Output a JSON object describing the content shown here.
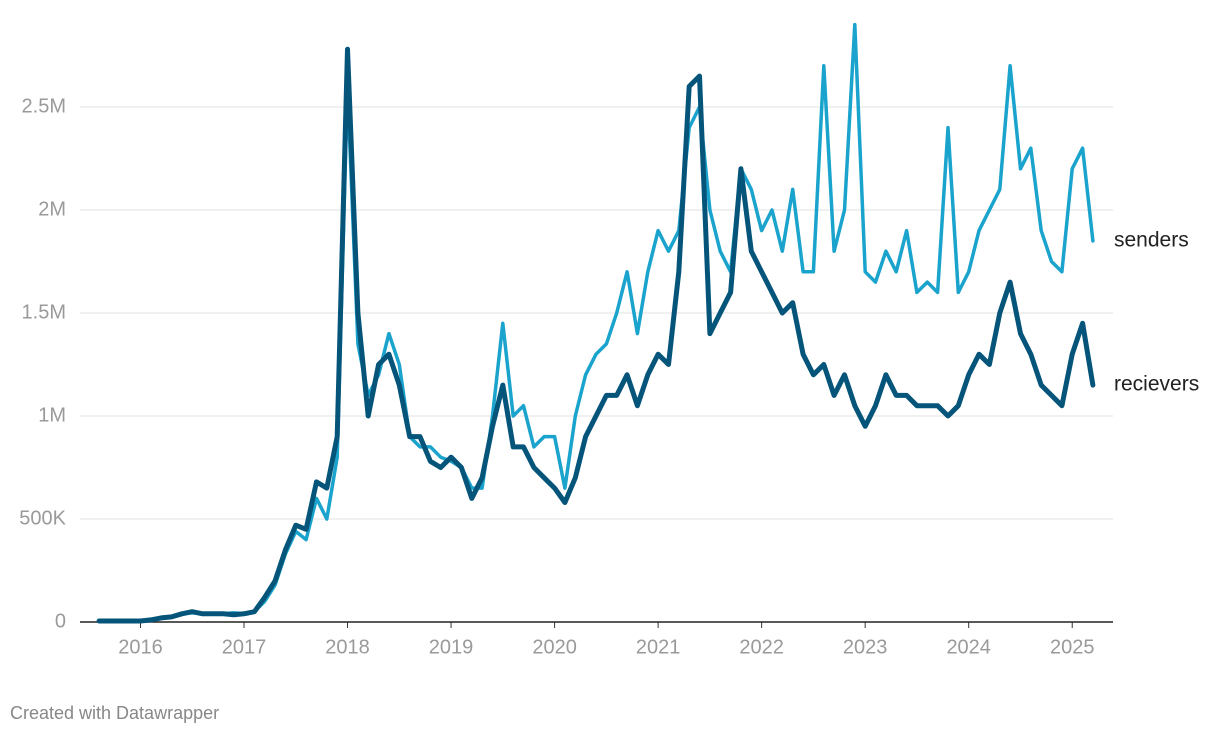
{
  "chart_data": {
    "type": "line",
    "x": [
      2015.6,
      2015.7,
      2015.8,
      2015.9,
      2016.0,
      2016.1,
      2016.2,
      2016.3,
      2016.4,
      2016.5,
      2016.6,
      2016.7,
      2016.8,
      2016.9,
      2017.0,
      2017.1,
      2017.2,
      2017.3,
      2017.4,
      2017.5,
      2017.6,
      2017.7,
      2017.8,
      2017.9,
      2018.0,
      2018.1,
      2018.2,
      2018.3,
      2018.4,
      2018.5,
      2018.6,
      2018.7,
      2018.8,
      2018.9,
      2019.0,
      2019.1,
      2019.2,
      2019.3,
      2019.4,
      2019.5,
      2019.6,
      2019.7,
      2019.8,
      2019.9,
      2020.0,
      2020.1,
      2020.2,
      2020.3,
      2020.4,
      2020.5,
      2020.6,
      2020.7,
      2020.8,
      2020.9,
      2021.0,
      2021.1,
      2021.2,
      2021.3,
      2021.4,
      2021.5,
      2021.6,
      2021.7,
      2021.8,
      2021.9,
      2022.0,
      2022.1,
      2022.2,
      2022.3,
      2022.4,
      2022.5,
      2022.6,
      2022.7,
      2022.8,
      2022.9,
      2023.0,
      2023.1,
      2023.2,
      2023.3,
      2023.4,
      2023.5,
      2023.6,
      2023.7,
      2023.8,
      2023.9,
      2024.0,
      2024.1,
      2024.2,
      2024.3,
      2024.4,
      2024.5,
      2024.6,
      2024.7,
      2024.8,
      2024.9,
      2025.0,
      2025.1,
      2025.2
    ],
    "series": [
      {
        "name": "senders",
        "color": "#1aa3cc",
        "values": [
          5000,
          5000,
          5000,
          5000,
          5000,
          10000,
          20000,
          25000,
          40000,
          45000,
          40000,
          40000,
          40000,
          45000,
          40000,
          50000,
          100000,
          180000,
          330000,
          440000,
          400000,
          600000,
          500000,
          800000,
          2600000,
          1350000,
          1100000,
          1200000,
          1400000,
          1250000,
          900000,
          850000,
          850000,
          800000,
          780000,
          750000,
          650000,
          650000,
          1000000,
          1450000,
          1000000,
          1050000,
          850000,
          900000,
          900000,
          650000,
          1000000,
          1200000,
          1300000,
          1350000,
          1500000,
          1700000,
          1400000,
          1700000,
          1900000,
          1800000,
          1900000,
          2400000,
          2500000,
          2000000,
          1800000,
          1700000,
          2200000,
          2100000,
          1900000,
          2000000,
          1800000,
          2100000,
          1700000,
          1700000,
          2700000,
          1800000,
          2000000,
          2900000,
          1700000,
          1650000,
          1800000,
          1700000,
          1900000,
          1600000,
          1650000,
          1600000,
          2400000,
          1600000,
          1700000,
          1900000,
          2000000,
          2100000,
          2700000,
          2200000,
          2300000,
          1900000,
          1750000,
          1700000,
          2200000,
          2300000,
          1850000
        ]
      },
      {
        "name": "recievers",
        "color": "#05547a",
        "values": [
          5000,
          5000,
          5000,
          5000,
          5000,
          10000,
          20000,
          25000,
          40000,
          50000,
          40000,
          40000,
          40000,
          35000,
          40000,
          50000,
          120000,
          200000,
          350000,
          470000,
          450000,
          680000,
          650000,
          900000,
          2780000,
          1500000,
          1000000,
          1250000,
          1300000,
          1150000,
          900000,
          900000,
          780000,
          750000,
          800000,
          750000,
          600000,
          700000,
          950000,
          1150000,
          850000,
          850000,
          750000,
          700000,
          650000,
          580000,
          700000,
          900000,
          1000000,
          1100000,
          1100000,
          1200000,
          1050000,
          1200000,
          1300000,
          1250000,
          1700000,
          2600000,
          2650000,
          1400000,
          1500000,
          1600000,
          2200000,
          1800000,
          1700000,
          1600000,
          1500000,
          1550000,
          1300000,
          1200000,
          1250000,
          1100000,
          1200000,
          1050000,
          950000,
          1050000,
          1200000,
          1100000,
          1100000,
          1050000,
          1050000,
          1050000,
          1000000,
          1050000,
          1200000,
          1300000,
          1250000,
          1500000,
          1650000,
          1400000,
          1300000,
          1150000,
          1100000,
          1050000,
          1300000,
          1450000,
          1150000
        ]
      }
    ],
    "xlim": [
      2015.58,
      2025.22
    ],
    "xticks": [
      2016,
      2017,
      2018,
      2019,
      2020,
      2021,
      2022,
      2023,
      2024,
      2025
    ],
    "ylim": [
      0,
      2900000
    ],
    "yticks": [
      0,
      {
        "value": 500000,
        "label": "500K"
      },
      {
        "value": 1000000,
        "label": "1M"
      },
      {
        "value": 1500000,
        "label": "1.5M"
      },
      {
        "value": 2000000,
        "label": "2M"
      },
      {
        "value": 2500000,
        "label": "2.5M"
      }
    ],
    "grid": true,
    "credit": "Created with Datawrapper"
  }
}
